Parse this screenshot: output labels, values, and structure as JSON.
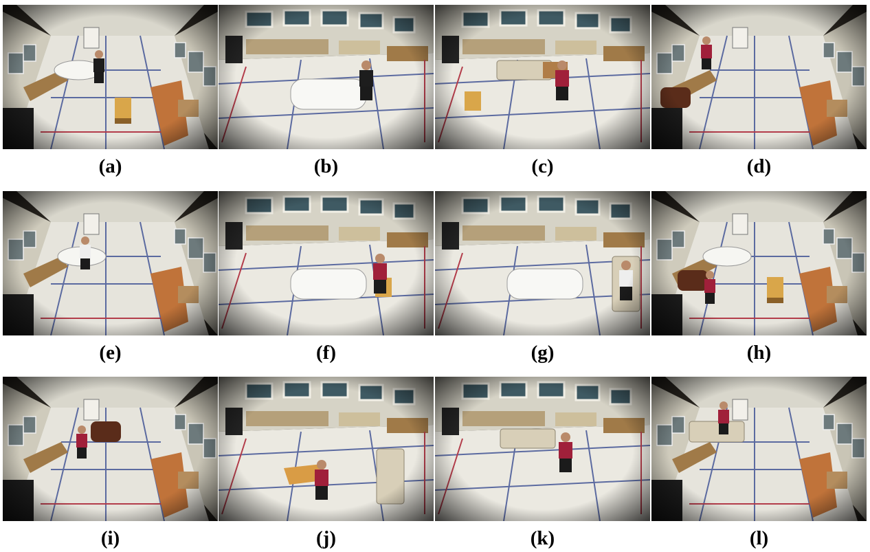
{
  "figure": {
    "panels": [
      {
        "label": "(a)",
        "scene": "room-a",
        "content": "man walking across the floor near the mattress, chair at right"
      },
      {
        "label": "(b)",
        "scene": "room-b",
        "content": "man kneeling beside the mattress"
      },
      {
        "label": "(c)",
        "scene": "room-b",
        "content": "man in red shirt carrying a box; chair and couch nearby"
      },
      {
        "label": "(d)",
        "scene": "room-a",
        "content": "man with a broom; armchair in the foreground"
      },
      {
        "label": "(e)",
        "scene": "room-a",
        "content": "man lying down near the mattress"
      },
      {
        "label": "(f)",
        "scene": "room-b",
        "content": "man in red shirt sitting on a chair beside the mattress"
      },
      {
        "label": "(g)",
        "scene": "room-b",
        "content": "man lying on the couch"
      },
      {
        "label": "(h)",
        "scene": "room-a",
        "content": "man lying in an armchair; chair at right"
      },
      {
        "label": "(i)",
        "scene": "room-a",
        "content": "man in red shirt leaning toward an armchair"
      },
      {
        "label": "(j)",
        "scene": "room-b",
        "content": "man lying on the floor near a table and couch"
      },
      {
        "label": "(k)",
        "scene": "room-b",
        "content": "man in red shirt sweeping with a broom near the couch"
      },
      {
        "label": "(l)",
        "scene": "room-a",
        "content": "man lying on a couch"
      }
    ]
  }
}
